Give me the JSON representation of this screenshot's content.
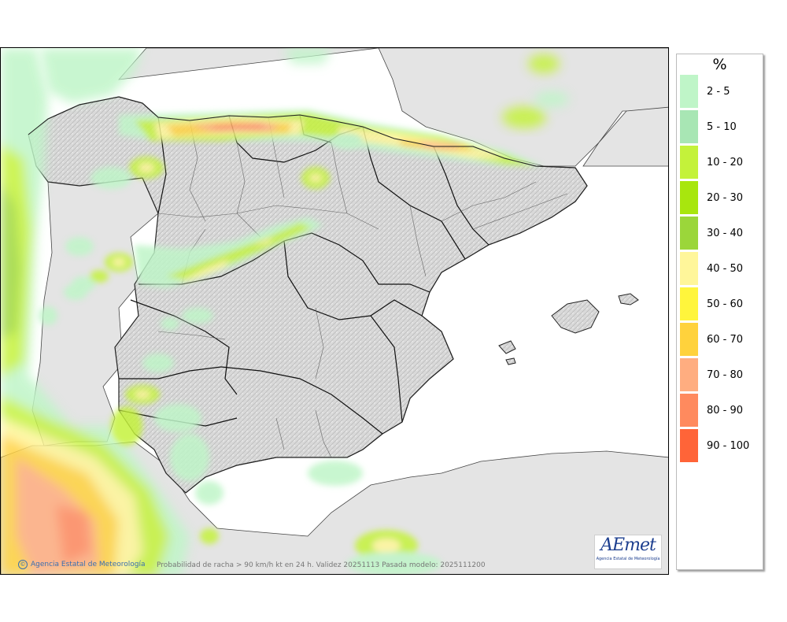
{
  "map": {
    "caption": "Probabilidad de racha > 90 km/h kt en 24 h. Validez  20251113 Pasada modelo: 2025111200",
    "credit": "Agencia Estatal de Meteorología",
    "copyright_symbol": "©"
  },
  "logo": {
    "word": "AEmet",
    "subtitle": "Agencia Estatal de Meteorología"
  },
  "legend": {
    "title": "%",
    "items": [
      {
        "label": "2 - 5",
        "color": "#bff5c8"
      },
      {
        "label": "5 - 10",
        "color": "#a8e6b4"
      },
      {
        "label": "10 - 20",
        "color": "#c4f23a"
      },
      {
        "label": "20 - 30",
        "color": "#a8e60e"
      },
      {
        "label": "30 - 40",
        "color": "#9bd63a"
      },
      {
        "label": "40 - 50",
        "color": "#fff69a"
      },
      {
        "label": "50 - 60",
        "color": "#fff53c"
      },
      {
        "label": "60 - 70",
        "color": "#ffd23c"
      },
      {
        "label": "70 - 80",
        "color": "#ffad80"
      },
      {
        "label": "80 - 90",
        "color": "#ff8a5e"
      },
      {
        "label": "90 - 100",
        "color": "#ff6438"
      }
    ]
  }
}
